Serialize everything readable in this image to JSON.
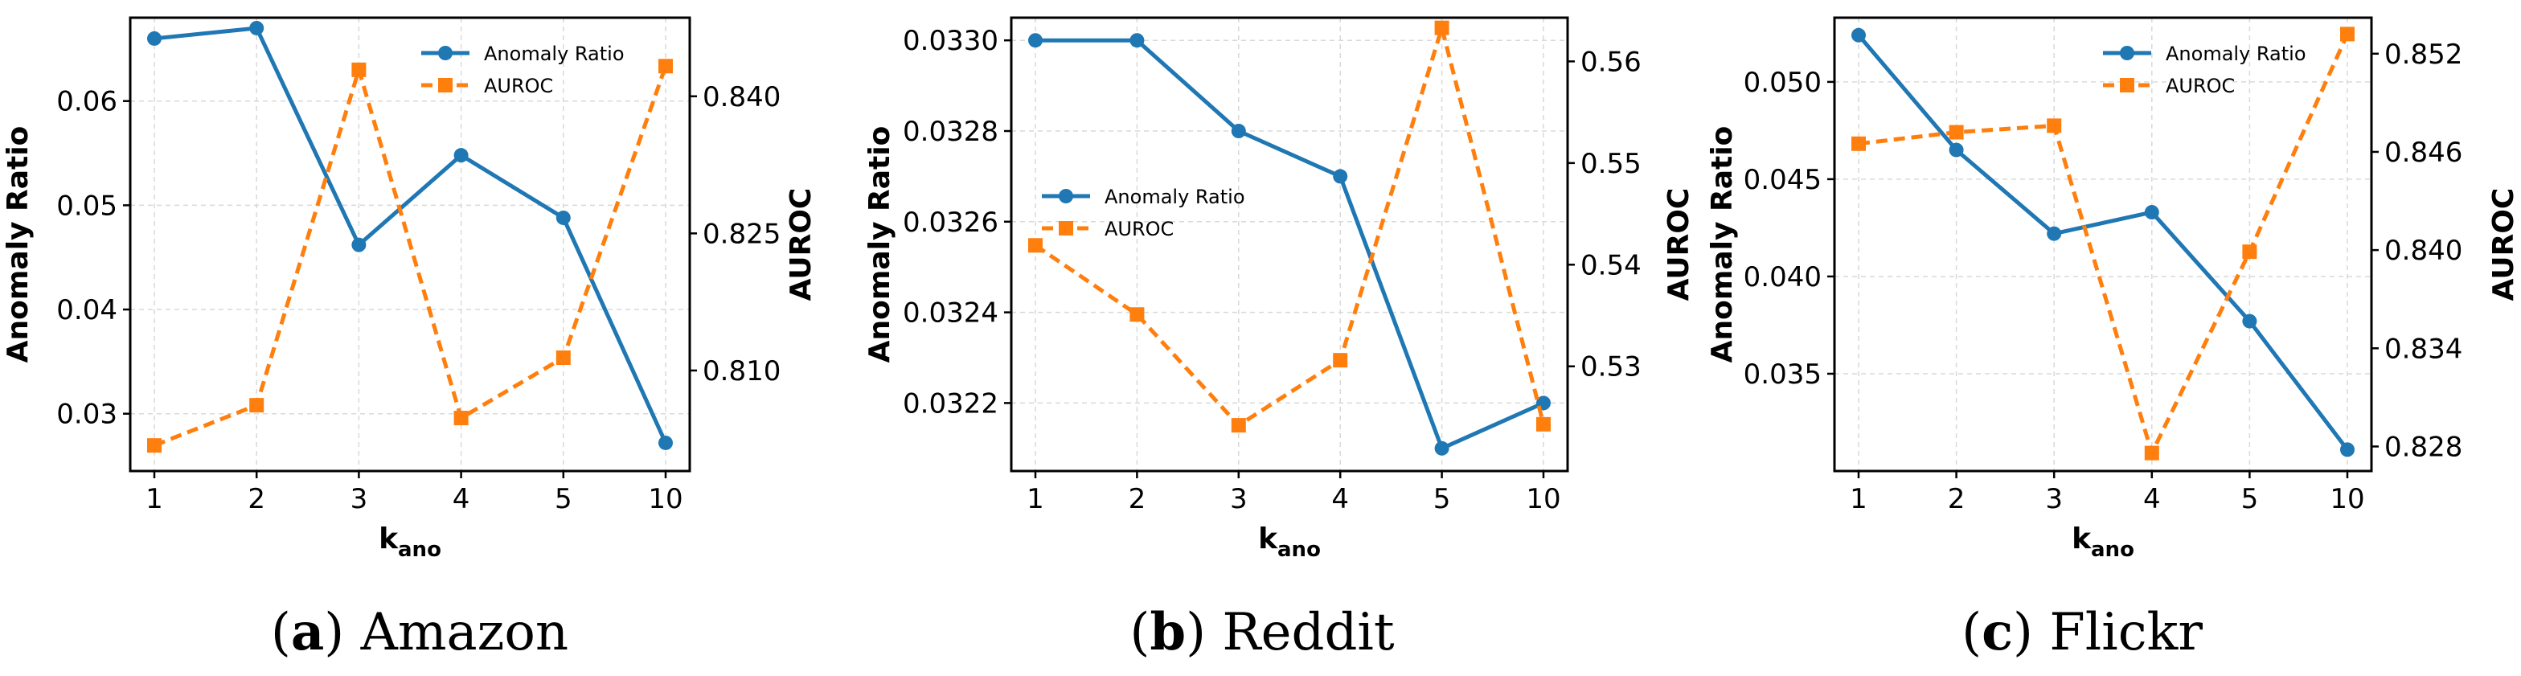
{
  "colors": {
    "anomaly": "#1f77b4",
    "auroc": "#ff7f0e",
    "grid": "#d9d9d9"
  },
  "chart_data": [
    {
      "type": "line",
      "caption_letter": "a",
      "caption_name": "Amazon",
      "categories": [
        "1",
        "2",
        "3",
        "4",
        "5",
        "10"
      ],
      "xlabel": "k",
      "xlabel_sub": "ano",
      "ylabel": "Anomaly Ratio",
      "y2label": "AUROC",
      "ylim": [
        0.0245,
        0.068
      ],
      "y2lim": [
        0.799,
        0.8486
      ],
      "yticks": [
        "0.03",
        "0.04",
        "0.05",
        "0.06"
      ],
      "y2ticks": [
        "0.810",
        "0.825",
        "0.840"
      ],
      "legend_position": "top-right",
      "series": [
        {
          "name": "Anomaly Ratio",
          "axis": "left",
          "style": "solid-circle",
          "values": [
            0.066,
            0.067,
            0.0462,
            0.0548,
            0.0488,
            0.0272
          ]
        },
        {
          "name": "AUROC",
          "axis": "right",
          "style": "dashed-square",
          "values": [
            0.8018,
            0.8062,
            0.8429,
            0.8048,
            0.8114,
            0.8433
          ]
        }
      ]
    },
    {
      "type": "line",
      "caption_letter": "b",
      "caption_name": "Reddit",
      "categories": [
        "1",
        "2",
        "3",
        "4",
        "5",
        "10"
      ],
      "xlabel": "k",
      "xlabel_sub": "ano",
      "ylabel": "Anomaly Ratio",
      "y2label": "AUROC",
      "ylim": [
        0.03205,
        0.03305
      ],
      "y2lim": [
        0.5197,
        0.5643
      ],
      "yticks": [
        "0.0322",
        "0.0324",
        "0.0326",
        "0.0328",
        "0.0330"
      ],
      "y2ticks": [
        "0.53",
        "0.54",
        "0.55",
        "0.56"
      ],
      "legend_position": "center-left",
      "series": [
        {
          "name": "Anomaly Ratio",
          "axis": "left",
          "style": "solid-circle",
          "values": [
            0.033,
            0.033,
            0.0328,
            0.0327,
            0.0321,
            0.0322
          ]
        },
        {
          "name": "AUROC",
          "axis": "right",
          "style": "dashed-square",
          "values": [
            0.5419,
            0.5351,
            0.5242,
            0.5306,
            0.5633,
            0.5243
          ]
        }
      ]
    },
    {
      "type": "line",
      "caption_letter": "c",
      "caption_name": "Flickr",
      "categories": [
        "1",
        "2",
        "3",
        "4",
        "5",
        "10"
      ],
      "xlabel": "k",
      "xlabel_sub": "ano",
      "ylabel": "Anomaly Ratio",
      "y2label": "AUROC",
      "ylim": [
        0.03,
        0.0533
      ],
      "y2lim": [
        0.8265,
        0.8542
      ],
      "yticks": [
        "0.035",
        "0.040",
        "0.045",
        "0.050"
      ],
      "y2ticks": [
        "0.828",
        "0.834",
        "0.840",
        "0.846",
        "0.852"
      ],
      "legend_position": "top-right",
      "series": [
        {
          "name": "Anomaly Ratio",
          "axis": "left",
          "style": "solid-circle",
          "values": [
            0.0524,
            0.0465,
            0.0422,
            0.0433,
            0.0377,
            0.0311
          ]
        },
        {
          "name": "AUROC",
          "axis": "right",
          "style": "dashed-square",
          "values": [
            0.8465,
            0.8472,
            0.8476,
            0.8276,
            0.8399,
            0.8532
          ]
        }
      ]
    }
  ]
}
